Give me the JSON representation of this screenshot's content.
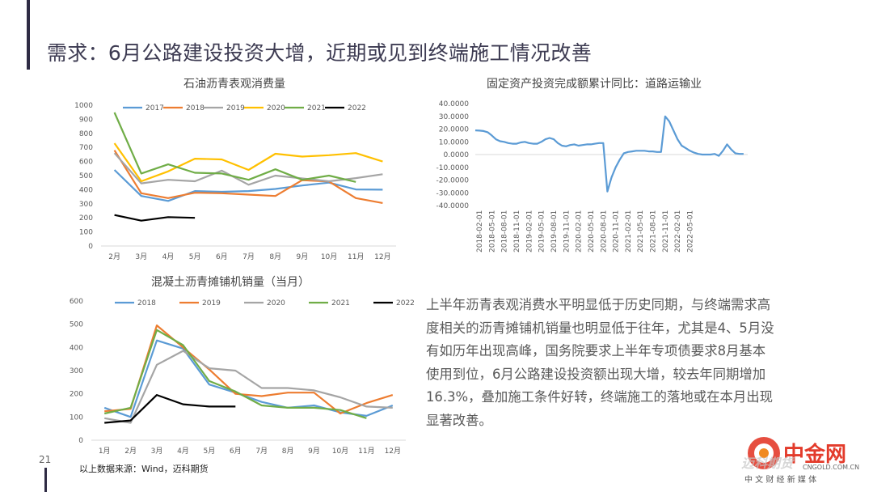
{
  "slide": {
    "title": "需求：6月公路建设投资大增，近期或见到终端施工情况改善",
    "page_number": "21",
    "source_note": "以上数据来源：Wind，迈科期货",
    "paragraph": "上半年沥青表观消费水平明显低于历史同期，与终端需求高度相关的沥青摊铺机销量也明显低于往年，尤其是4、5月没有如历年出现高峰，国务院要求上半年专项债要求8月基本使用到位，6月公路建设投资额出现大增，较去年同期增加16.3%，叠加施工条件好转，终端施工的落地或在本月出现显著改善。"
  },
  "watermark": {
    "cn": "中金网",
    "en": "CNGOLD.COM.CN",
    "tagline": "中 文 财 经 新 媒 体",
    "overlay": "迈科期货",
    "brand_color": "#e33b2b"
  },
  "chart_data": [
    {
      "type": "line",
      "title": "石油沥青表观消费量",
      "categories": [
        "2月",
        "3月",
        "4月",
        "5月",
        "6月",
        "7月",
        "8月",
        "9月",
        "10月",
        "11月",
        "12月"
      ],
      "ylim": [
        0,
        1000
      ],
      "yticks": [
        "0",
        "100",
        "200",
        "300",
        "400",
        "500",
        "600",
        "700",
        "800",
        "900",
        "1000"
      ],
      "series": [
        {
          "name": "2017",
          "color": "#5b9bd5",
          "values": [
            540,
            355,
            320,
            390,
            385,
            390,
            405,
            430,
            450,
            402,
            400
          ]
        },
        {
          "name": "2018",
          "color": "#ed7d31",
          "values": [
            680,
            375,
            340,
            378,
            375,
            365,
            355,
            468,
            458,
            340,
            305
          ]
        },
        {
          "name": "2019",
          "color": "#a5a5a5",
          "values": [
            660,
            445,
            470,
            460,
            535,
            435,
            500,
            480,
            460,
            482,
            510
          ]
        },
        {
          "name": "2020",
          "color": "#ffc000",
          "values": [
            730,
            460,
            530,
            620,
            615,
            540,
            655,
            635,
            645,
            660,
            600
          ]
        },
        {
          "name": "2021",
          "color": "#70ad47",
          "values": [
            948,
            515,
            580,
            520,
            515,
            470,
            545,
            470,
            500,
            455,
            null
          ]
        },
        {
          "name": "2022",
          "color": "#000000",
          "values": [
            220,
            180,
            205,
            200,
            null,
            null,
            null,
            null,
            null,
            null,
            null
          ]
        }
      ]
    },
    {
      "type": "line",
      "title": "固定资产投资完成额累计同比：道路运输业",
      "ylim": [
        -40,
        40
      ],
      "yticks": [
        "40.0000",
        "30.0000",
        "20.0000",
        "10.0000",
        "0.0000",
        "-10.0000",
        "-20.0000",
        "-30.0000",
        "-40.0000"
      ],
      "xticks": [
        "2018-02-01",
        "2018-05-01",
        "2018-08-01",
        "2018-11-01",
        "2019-02-01",
        "2019-05-01",
        "2019-08-01",
        "2019-11-01",
        "2020-02-01",
        "2020-05-01",
        "2020-08-01",
        "2020-11-01",
        "2021-02-01",
        "2021-05-01",
        "2021-08-01",
        "2021-11-01",
        "2022-02-01",
        "2022-05-01"
      ],
      "series": [
        {
          "name": "道路运输业",
          "color": "#5b9bd5",
          "x": [
            0,
            1,
            2,
            3,
            4,
            5,
            6,
            7,
            8,
            9,
            10,
            11,
            12,
            13,
            14,
            15,
            16,
            17,
            18,
            19,
            20,
            21,
            22,
            23,
            24,
            25,
            26,
            27,
            28,
            29,
            30,
            31,
            32,
            33,
            34,
            35,
            36,
            37,
            38,
            39,
            40,
            41,
            42,
            43,
            44,
            45,
            46,
            47,
            48,
            49,
            50,
            51,
            52,
            53,
            54,
            55,
            56,
            57,
            58,
            59,
            60,
            61,
            62,
            63,
            64,
            65
          ],
          "values": [
            19,
            18.8,
            18.5,
            17.5,
            15,
            12,
            10.5,
            10,
            9,
            8.5,
            8.5,
            9.5,
            10,
            9,
            8.5,
            8.5,
            10,
            12,
            13,
            12,
            9,
            7,
            6.5,
            7.5,
            8,
            7,
            7.5,
            8,
            8,
            8.5,
            9,
            9,
            -29,
            -18,
            -10,
            -4,
            1,
            2,
            2.5,
            3,
            3,
            3,
            2.5,
            2.5,
            2,
            2,
            30,
            26,
            19,
            12,
            7,
            5,
            3,
            1.5,
            0.5,
            0,
            0,
            0,
            0.5,
            -1,
            3,
            8,
            4,
            1,
            0.5,
            0.5
          ]
        }
      ]
    },
    {
      "type": "line",
      "title": "混凝土沥青摊铺机销量（当月）",
      "categories": [
        "1月",
        "2月",
        "3月",
        "4月",
        "5月",
        "6月",
        "7月",
        "8月",
        "9月",
        "10月",
        "11月",
        "12月"
      ],
      "ylim": [
        0,
        600
      ],
      "yticks": [
        "0",
        "100",
        "200",
        "300",
        "400",
        "500",
        "600"
      ],
      "series": [
        {
          "name": "2018",
          "color": "#5b9bd5",
          "values": [
            140,
            100,
            430,
            395,
            240,
            205,
            165,
            140,
            150,
            120,
            105,
            150
          ]
        },
        {
          "name": "2019",
          "color": "#ed7d31",
          "values": [
            125,
            135,
            495,
            400,
            305,
            200,
            190,
            205,
            205,
            115,
            160,
            195
          ]
        },
        {
          "name": "2020",
          "color": "#a5a5a5",
          "values": [
            95,
            75,
            325,
            385,
            310,
            300,
            225,
            225,
            215,
            185,
            145,
            140
          ]
        },
        {
          "name": "2021",
          "color": "#70ad47",
          "values": [
            115,
            140,
            475,
            410,
            255,
            210,
            150,
            140,
            140,
            130,
            95,
            null
          ]
        },
        {
          "name": "2022",
          "color": "#000000",
          "values": [
            75,
            85,
            195,
            155,
            145,
            145,
            null,
            null,
            null,
            null,
            null,
            null
          ]
        }
      ]
    }
  ]
}
